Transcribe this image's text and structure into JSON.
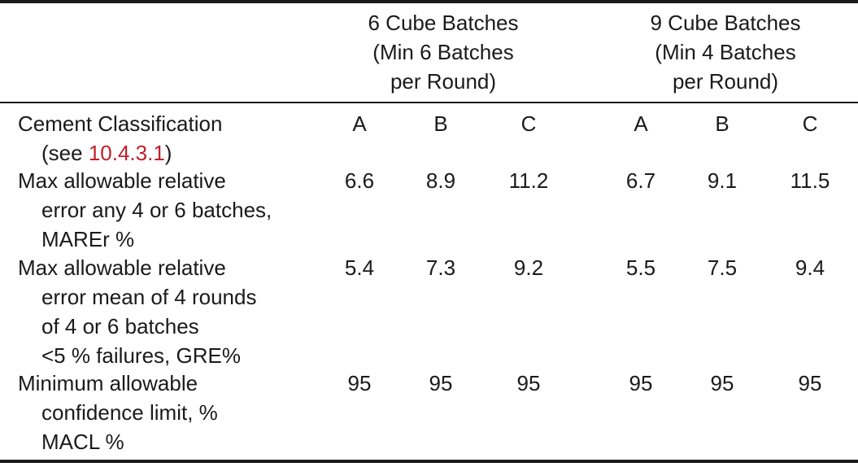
{
  "header": {
    "group_6": [
      "6 Cube Batches",
      "(Min 6 Batches",
      "per Round)"
    ],
    "group_9": [
      "9 Cube Batches",
      "(Min 4 Batches",
      "per Round)"
    ]
  },
  "rows": [
    {
      "label": [
        "Cement Classification",
        "(see "
      ],
      "ref": "10.4.3.1",
      "ref_suffix": ")",
      "cells": [
        "A",
        "B",
        "C",
        "A",
        "B",
        "C"
      ]
    },
    {
      "label": [
        "Max allowable relative",
        "error any 4 or 6 batches,",
        "MAREr %"
      ],
      "cells": [
        "6.6",
        "8.9",
        "11.2",
        "6.7",
        "9.1",
        "11.5"
      ]
    },
    {
      "label": [
        "Max allowable relative",
        "error mean of 4 rounds",
        "of 4 or 6 batches",
        "<5 % failures, GRE%"
      ],
      "cells": [
        "5.4",
        "7.3",
        "9.2",
        "5.5",
        "7.5",
        "9.4"
      ]
    },
    {
      "label": [
        "Minimum allowable",
        "confidence limit, %",
        "MACL %"
      ],
      "cells": [
        "95",
        "95",
        "95",
        "95",
        "95",
        "95"
      ]
    }
  ],
  "colors": {
    "text": "#1a1a1a",
    "reference_link": "#c0202a"
  }
}
